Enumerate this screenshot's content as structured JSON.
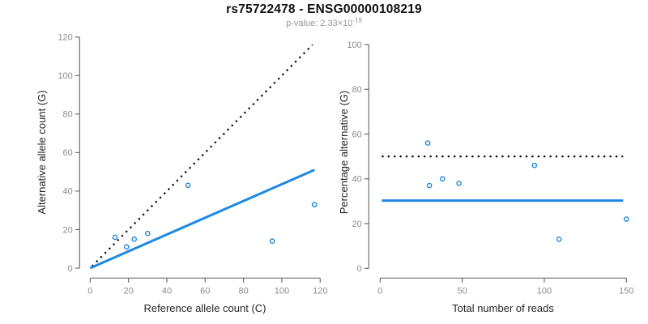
{
  "figure": {
    "title": "rs75722478 - ENSG00000108219",
    "subtitle": {
      "text": "p-value: 2.33×10",
      "exponent": "-19"
    }
  },
  "colors": {
    "accent_blue": "#1E88E5",
    "point_blue": "#1E86D9",
    "dotted_black": "#000000",
    "axis_gray": "#6e6e6e",
    "tick_label_gray": "#8c8c8c",
    "axis_label_dark": "#262626"
  },
  "chart_data": [
    {
      "name": "allele-counts-scatter",
      "type": "scatter",
      "xlabel": "Reference allele count (C)",
      "ylabel": "Alternative allele count (G)",
      "xlim": [
        0,
        120
      ],
      "ylim": [
        0,
        120
      ],
      "xticks": [
        0,
        20,
        40,
        60,
        80,
        100,
        120
      ],
      "yticks": [
        0,
        20,
        40,
        60,
        80,
        100,
        120
      ],
      "grid": false,
      "legend": false,
      "points": [
        [
          13,
          16
        ],
        [
          19,
          11
        ],
        [
          23,
          15
        ],
        [
          30,
          18
        ],
        [
          51,
          43
        ],
        [
          95,
          14
        ],
        [
          117,
          33
        ]
      ],
      "lines": [
        {
          "name": "identity-line",
          "style": "dotted",
          "color": "#000000",
          "from": [
            1,
            1
          ],
          "to": [
            116,
            116
          ]
        },
        {
          "name": "fit-ratio-line",
          "style": "solid",
          "color": "#1E88E5",
          "from": [
            0,
            0
          ],
          "to": [
            117,
            51
          ]
        }
      ]
    },
    {
      "name": "percentage-vs-reads-scatter",
      "type": "scatter",
      "xlabel": "Total number of reads",
      "ylabel": "Percentage alternative (G)",
      "xlim": [
        0,
        150
      ],
      "ylim": [
        0,
        100
      ],
      "xticks": [
        0,
        50,
        100,
        150
      ],
      "yticks": [
        0,
        20,
        40,
        60,
        80,
        100
      ],
      "grid": false,
      "legend": false,
      "points": [
        [
          29,
          56
        ],
        [
          30,
          37
        ],
        [
          38,
          40
        ],
        [
          48,
          38
        ],
        [
          94,
          46
        ],
        [
          109,
          13
        ],
        [
          150,
          22
        ]
      ],
      "lines": [
        {
          "name": "fifty-percent-line",
          "style": "dotted",
          "color": "#000000",
          "from": [
            1,
            50
          ],
          "to": [
            148,
            50
          ]
        },
        {
          "name": "mean-percentage-line",
          "style": "solid",
          "color": "#1E88E5",
          "from": [
            1,
            30.3
          ],
          "to": [
            148,
            30.3
          ]
        }
      ]
    }
  ]
}
